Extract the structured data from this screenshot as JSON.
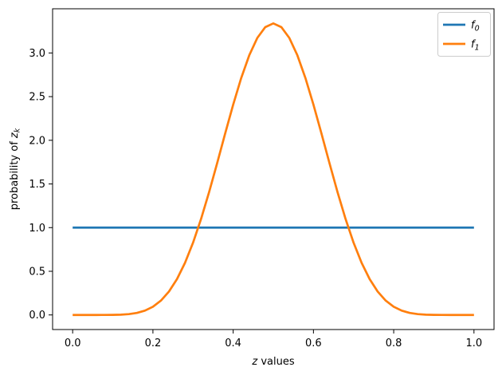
{
  "figure": {
    "axes": {
      "xlabel_var": "z",
      "xlabel_rest": " values",
      "ylabel_prefix": "probability of ",
      "ylabel_var": "z",
      "ylabel_sub": "k",
      "xtick_labels": [
        "0.0",
        "0.2",
        "0.4",
        "0.6",
        "0.8",
        "1.0"
      ],
      "xtick_values": [
        0.0,
        0.2,
        0.4,
        0.6,
        0.8,
        1.0
      ],
      "ytick_labels": [
        "0.0",
        "0.5",
        "1.0",
        "1.5",
        "2.0",
        "2.5",
        "3.0"
      ],
      "ytick_values": [
        0.0,
        0.5,
        1.0,
        1.5,
        2.0,
        2.5,
        3.0
      ]
    },
    "legend": {
      "entries": [
        {
          "label_var": "f",
          "label_sub": "0",
          "color": "#1f77b4"
        },
        {
          "label_var": "f",
          "label_sub": "1",
          "color": "#ff7f0e"
        }
      ]
    },
    "colors": {
      "background": "#ffffff",
      "spine": "#000000",
      "tick": "#000000",
      "legend_edge": "#cccccc",
      "series_f0": "#1f77b4",
      "series_f1": "#ff7f0e"
    }
  },
  "chart_data": {
    "type": "line",
    "title": "",
    "xlabel": "z values",
    "ylabel": "probability of z_k",
    "xlim": [
      -0.05,
      1.05
    ],
    "ylim": [
      -0.167,
      3.506
    ],
    "grid": false,
    "legend_position": "upper right",
    "x": [
      0.0,
      0.02,
      0.04,
      0.06,
      0.08,
      0.1,
      0.12,
      0.14,
      0.16,
      0.18,
      0.2,
      0.22,
      0.24,
      0.26,
      0.28,
      0.3,
      0.32,
      0.34,
      0.36,
      0.38,
      0.4,
      0.42,
      0.44,
      0.46,
      0.48,
      0.5,
      0.52,
      0.54,
      0.56,
      0.58,
      0.6,
      0.62,
      0.64,
      0.66,
      0.68,
      0.7,
      0.72,
      0.74,
      0.76,
      0.78,
      0.8,
      0.82,
      0.84,
      0.86,
      0.88,
      0.9,
      0.92,
      0.94,
      0.96,
      0.98,
      1.0
    ],
    "series": [
      {
        "name": "f_0",
        "color": "#1f77b4",
        "values": [
          1,
          1,
          1,
          1,
          1,
          1,
          1,
          1,
          1,
          1,
          1,
          1,
          1,
          1,
          1,
          1,
          1,
          1,
          1,
          1,
          1,
          1,
          1,
          1,
          1,
          1,
          1,
          1,
          1,
          1,
          1,
          1,
          1,
          1,
          1,
          1,
          1,
          1,
          1,
          1,
          1,
          1,
          1,
          1,
          1,
          1,
          1,
          1,
          1,
          1,
          1
        ]
      },
      {
        "name": "f_1",
        "color": "#ff7f0e",
        "values": [
          0,
          0,
          0,
          0,
          0.0002,
          0.0009,
          0.0034,
          0.0097,
          0.0233,
          0.0493,
          0.094,
          0.1645,
          0.2681,
          0.4108,
          0.597,
          0.8275,
          1.0998,
          1.4067,
          1.7373,
          2.077,
          2.4083,
          2.713,
          2.9727,
          3.1713,
          3.296,
          3.3385,
          3.296,
          3.1713,
          2.9727,
          2.713,
          2.4083,
          2.077,
          1.7373,
          1.4067,
          1.0998,
          0.8275,
          0.597,
          0.4108,
          0.2681,
          0.1645,
          0.094,
          0.0493,
          0.0233,
          0.0097,
          0.0034,
          0.0009,
          0.0002,
          0,
          0,
          0,
          0
        ]
      }
    ]
  }
}
